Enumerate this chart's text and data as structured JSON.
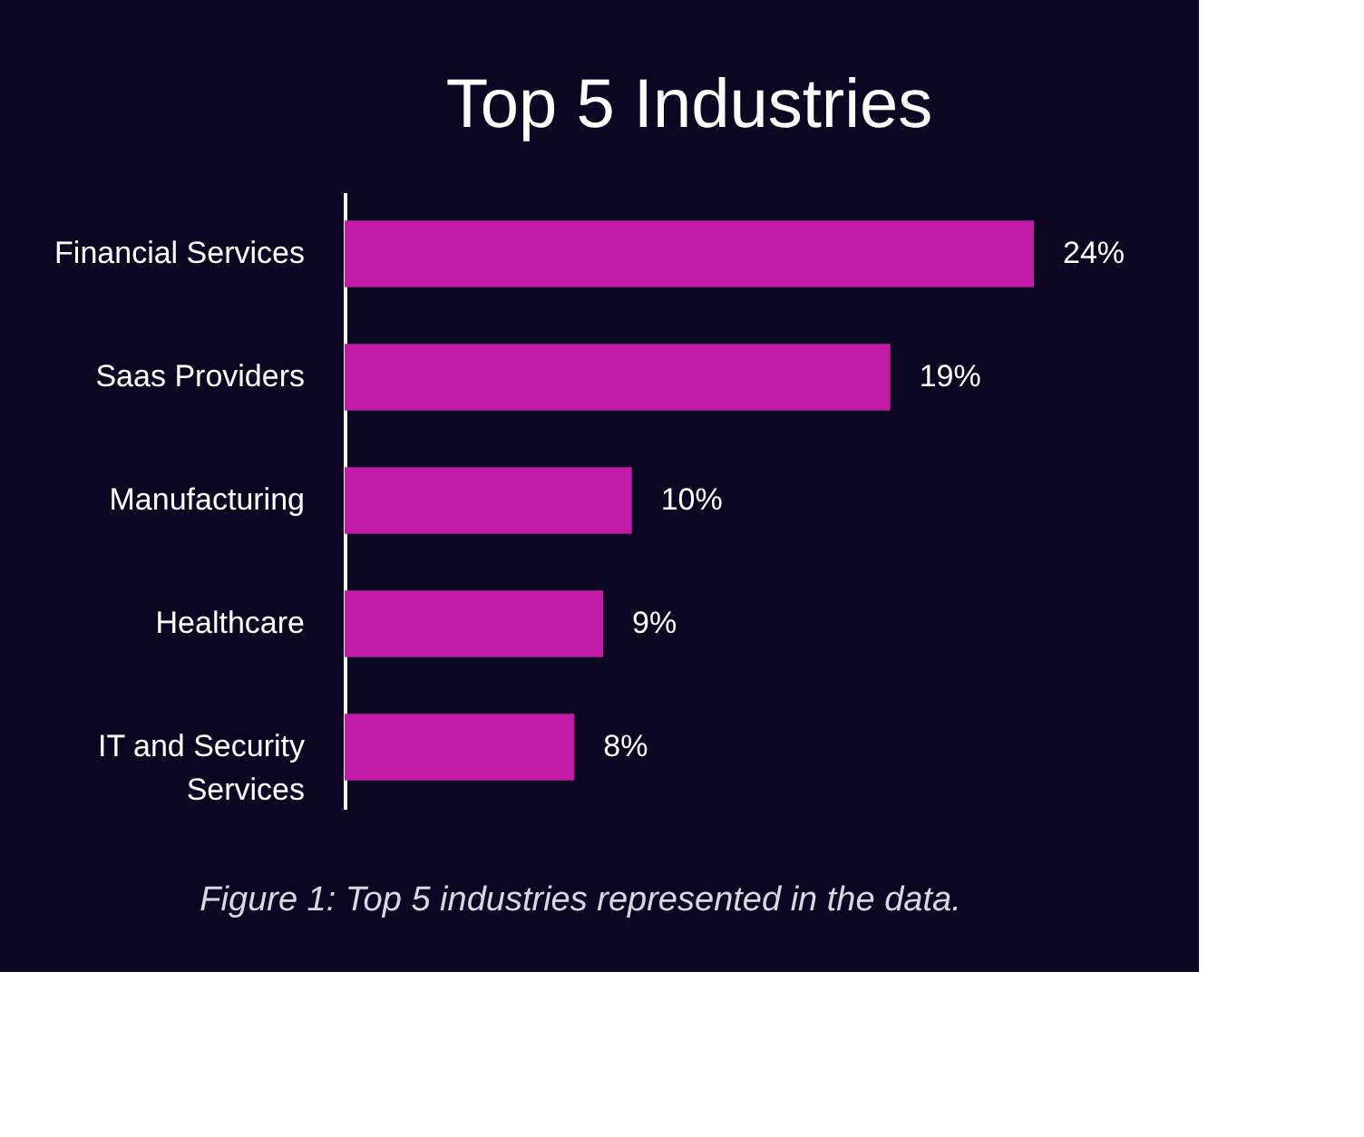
{
  "chart_data": {
    "type": "bar",
    "orientation": "horizontal",
    "title": "Top 5 Industries",
    "categories": [
      "Financial Services",
      "Saas Providers",
      "Manufacturing",
      "Healthcare",
      "IT and Security Services"
    ],
    "values": [
      24,
      19,
      10,
      9,
      8
    ],
    "value_labels": [
      "24%",
      "19%",
      "10%",
      "9%",
      "8%"
    ],
    "color": "#c21ba8",
    "annotations": [
      "Figure 1: Top 5 industries represented in the data."
    ]
  }
}
